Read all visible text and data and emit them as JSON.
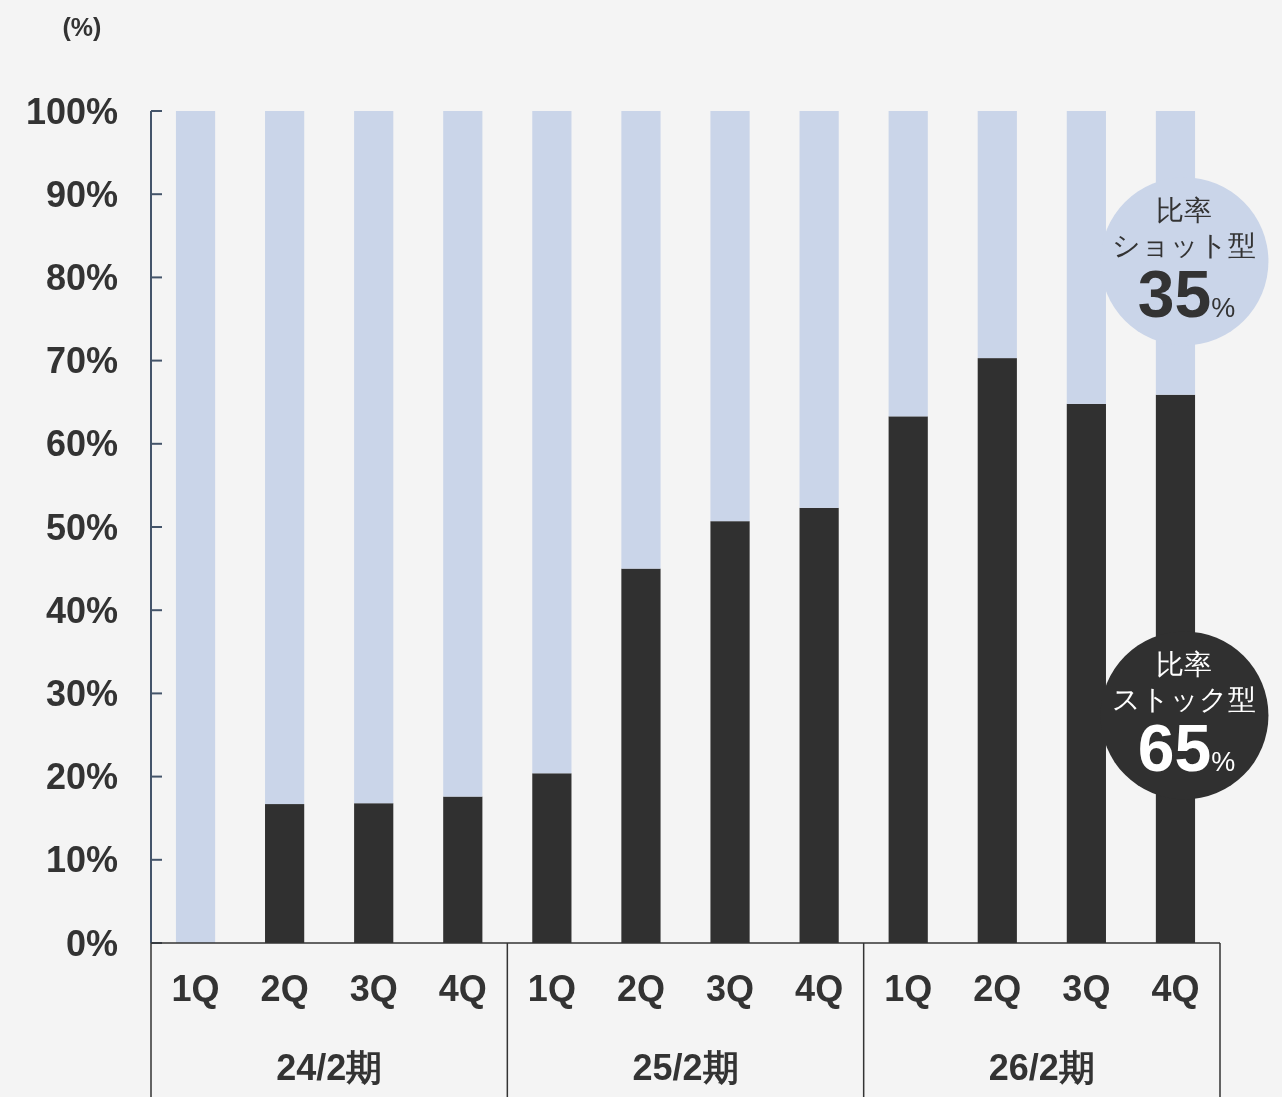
{
  "chart_data": {
    "type": "bar",
    "stacked": true,
    "ylabel": "(%)",
    "categories": [
      "1Q",
      "2Q",
      "3Q",
      "4Q",
      "1Q",
      "2Q",
      "3Q",
      "4Q",
      "1Q",
      "2Q",
      "3Q",
      "4Q"
    ],
    "series": [
      {
        "name": "比率ストック型",
        "color": "#303030",
        "values": [
          0,
          16.7,
          16.8,
          17.6,
          20.4,
          45.0,
          50.7,
          52.3,
          63.3,
          70.3,
          64.8,
          65.9
        ]
      },
      {
        "name": "比率ショット型",
        "color": "#cad5e9",
        "values": [
          100,
          83.3,
          83.2,
          82.4,
          79.6,
          55.0,
          49.3,
          47.7,
          36.7,
          29.7,
          35.2,
          34.1
        ]
      }
    ],
    "ylim": [
      0,
      100
    ],
    "yticks": [
      {
        "value": 0,
        "label": "0%"
      },
      {
        "value": 10,
        "label": "10%"
      },
      {
        "value": 20,
        "label": "20%"
      },
      {
        "value": 30,
        "label": "30%"
      },
      {
        "value": 40,
        "label": "40%"
      },
      {
        "value": 50,
        "label": "50%"
      },
      {
        "value": 60,
        "label": "60%"
      },
      {
        "value": 70,
        "label": "70%"
      },
      {
        "value": 80,
        "label": "80%"
      },
      {
        "value": 90,
        "label": "90%"
      },
      {
        "value": 100,
        "label": "100%"
      }
    ],
    "annotations": [
      "24/2期",
      "25/2期",
      "26/2期",
      "65%",
      "35%"
    ]
  }
}
